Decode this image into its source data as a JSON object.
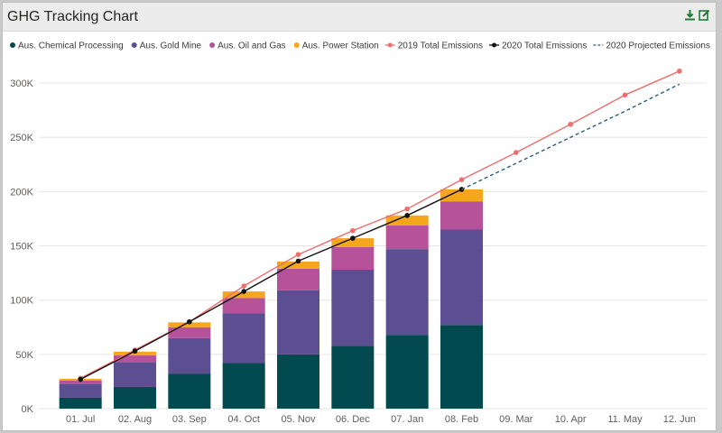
{
  "title": "GHG Tracking Chart",
  "toolbar": {
    "export_icon": "download-icon",
    "edit_icon": "edit-icon",
    "icon_color": "#1e7d33"
  },
  "chart_data": {
    "type": "bar",
    "stacked": true,
    "categories": [
      "01. Jul",
      "02. Aug",
      "03. Sep",
      "04. Oct",
      "05. Nov",
      "06. Dec",
      "07. Jan",
      "08. Feb",
      "09. Mar",
      "10. Apr",
      "11. May",
      "12. Jun"
    ],
    "ylim": [
      0,
      320000
    ],
    "yticks": [
      0,
      50000,
      100000,
      150000,
      200000,
      250000,
      300000
    ],
    "ytick_labels": [
      "0K",
      "50K",
      "100K",
      "150K",
      "200K",
      "250K",
      "300K"
    ],
    "grid": true,
    "legend_position": "top",
    "series": [
      {
        "name": "Aus. Chemical Processing",
        "kind": "bar",
        "color": "#024950",
        "values": [
          10000,
          20000,
          32000,
          42000,
          50000,
          58000,
          68000,
          77000,
          null,
          null,
          null,
          null
        ]
      },
      {
        "name": "Aus. Gold Mine",
        "kind": "bar",
        "color": "#5b4f91",
        "values": [
          13000,
          23000,
          33000,
          46000,
          59000,
          70000,
          79000,
          88000,
          null,
          null,
          null,
          null
        ]
      },
      {
        "name": "Aus. Oil and Gas",
        "kind": "bar",
        "color": "#b55299",
        "values": [
          3000,
          6000,
          10000,
          14000,
          20000,
          21000,
          22000,
          26000,
          null,
          null,
          null,
          null
        ]
      },
      {
        "name": "Aus. Power Station",
        "kind": "bar",
        "color": "#f4a71d",
        "values": [
          1500,
          3500,
          4500,
          6000,
          6500,
          8000,
          9000,
          11000,
          null,
          null,
          null,
          null
        ]
      },
      {
        "name": "2019 Total Emissions",
        "kind": "line",
        "color": "#ee6e6e",
        "marker": true,
        "values": [
          28000,
          54000,
          80000,
          113000,
          142000,
          164000,
          184000,
          211000,
          236000,
          262000,
          289000,
          311000
        ]
      },
      {
        "name": "2020 Total Emissions",
        "kind": "line",
        "color": "#111111",
        "marker": true,
        "values": [
          27000,
          53000,
          80000,
          108000,
          136000,
          157000,
          178000,
          202000,
          null,
          null,
          null,
          null
        ]
      },
      {
        "name": "2020 Projected Emissions",
        "kind": "line",
        "color": "#2a5d7c",
        "dashed": true,
        "marker": false,
        "values": [
          null,
          null,
          null,
          null,
          null,
          null,
          null,
          202000,
          226000,
          250000,
          274000,
          299000
        ]
      }
    ]
  }
}
